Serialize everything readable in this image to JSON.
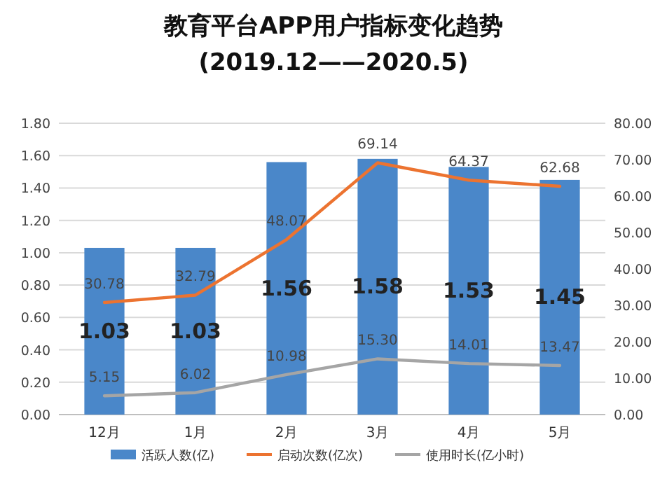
{
  "chart_data": {
    "type": "bar",
    "title": "教育平台APP用户指标变化趋势",
    "subtitle": "(2019.12——2020.5)",
    "categories": [
      "12月",
      "1月",
      "2月",
      "3月",
      "4月",
      "5月"
    ],
    "series": [
      {
        "name": "活跃人数(亿)",
        "color": "#4a87c9",
        "values": [
          1.03,
          1.03,
          1.56,
          1.58,
          1.53,
          1.45
        ],
        "value_labels": [
          "1.03",
          "1.03",
          "1.56",
          "1.58",
          "1.53",
          "1.45"
        ]
      },
      {
        "name": "启动次数(亿次)",
        "type": "line",
        "axis": "y2",
        "color": "#ec7330",
        "values": [
          30.78,
          32.79,
          48.07,
          69.14,
          64.37,
          62.68
        ],
        "value_labels": [
          "30.78",
          "32.79",
          "48.07",
          "69.14",
          "64.37",
          "62.68"
        ]
      },
      {
        "name": "使用时长(亿小时)",
        "type": "line",
        "axis": "y2",
        "color": "#a5a5a5",
        "values": [
          5.15,
          6.02,
          10.98,
          15.3,
          14.01,
          13.47
        ],
        "value_labels": [
          "5.15",
          "6.02",
          "10.98",
          "15.30",
          "14.01",
          "13.47"
        ]
      }
    ],
    "ylim": [
      0,
      1.8
    ],
    "yticks": [
      {
        "value": 0,
        "label": "0.00"
      },
      {
        "value": 0.2,
        "label": "0.20"
      },
      {
        "value": 0.4,
        "label": "0.40"
      },
      {
        "value": 0.6,
        "label": "0.60"
      },
      {
        "value": 0.8,
        "label": "0.80"
      },
      {
        "value": 1,
        "label": "1.00"
      },
      {
        "value": 1.2,
        "label": "1.20"
      },
      {
        "value": 1.4,
        "label": "1.40"
      },
      {
        "value": 1.6,
        "label": "1.60"
      },
      {
        "value": 1.8,
        "label": "1.80"
      }
    ],
    "y2lim": [
      0,
      80
    ],
    "y2ticks": [
      {
        "value": 0,
        "label": "0.00"
      },
      {
        "value": 10,
        "label": "10.00"
      },
      {
        "value": 20,
        "label": "20.00"
      },
      {
        "value": 30,
        "label": "30.00"
      },
      {
        "value": 40,
        "label": "40.00"
      },
      {
        "value": 50,
        "label": "50.00"
      },
      {
        "value": 60,
        "label": "60.00"
      },
      {
        "value": 70,
        "label": "70.00"
      },
      {
        "value": 80,
        "label": "80.00"
      }
    ],
    "grid": "y",
    "legend": "bottom"
  }
}
